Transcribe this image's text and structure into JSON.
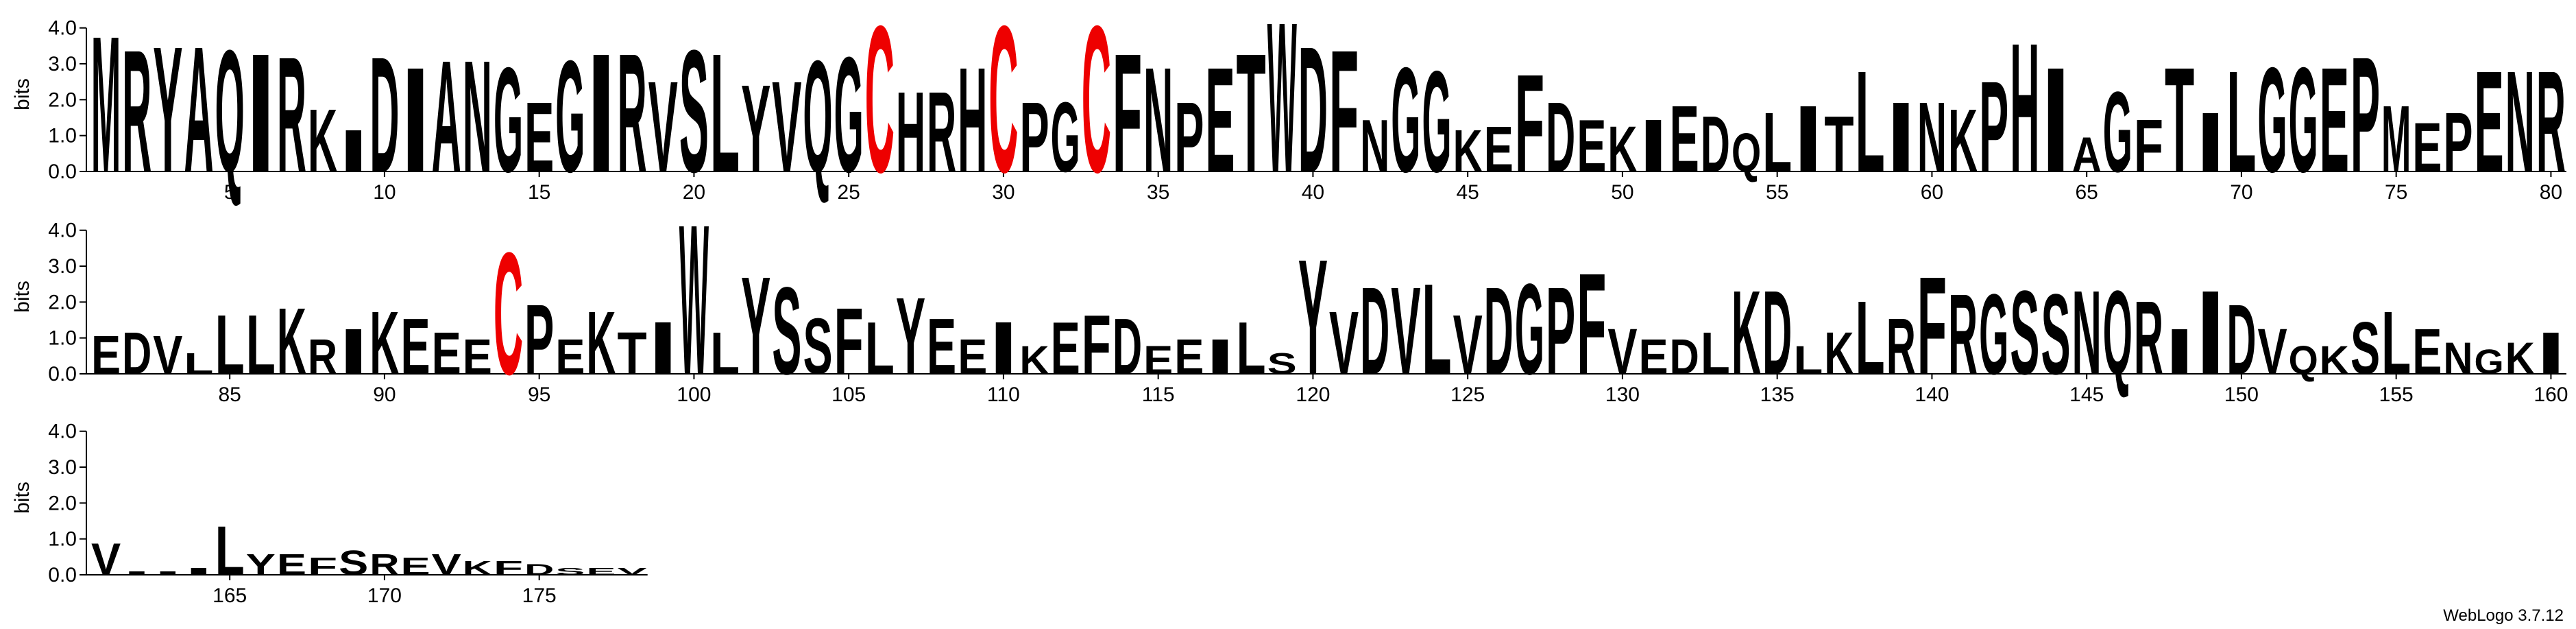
{
  "chart_data": {
    "type": "logo",
    "ylabel": "bits",
    "footer": "WebLogo 3.7.12",
    "ylim": [
      0,
      4.3
    ],
    "yticks": [
      {
        "value": 0,
        "label": "0.0"
      },
      {
        "value": 1,
        "label": "1.0"
      },
      {
        "value": 2,
        "label": "2.0"
      },
      {
        "value": 3,
        "label": "3.0"
      },
      {
        "value": 4,
        "label": "4.0"
      }
    ],
    "xticks": [
      5,
      10,
      15,
      20,
      25,
      30,
      35,
      40,
      45,
      50,
      55,
      60,
      65,
      70,
      75,
      80,
      85,
      90,
      95,
      100,
      105,
      110,
      115,
      120,
      125,
      130,
      135,
      140,
      145,
      150,
      155,
      160,
      165,
      170,
      175
    ],
    "first_position": 1,
    "color": "#000000",
    "highlight": {
      "letter": "C",
      "color": "#ee0000"
    },
    "letters": [
      "M",
      "R",
      "Y",
      "A",
      "Q",
      "I",
      "R",
      "K",
      "I",
      "D",
      "I",
      "A",
      "N",
      "G",
      "E",
      "G",
      "I",
      "R",
      "V",
      "S",
      "L",
      "Y",
      "V",
      "Q",
      "G",
      "C",
      "H",
      "R",
      "H",
      "C",
      "P",
      "G",
      "C",
      "F",
      "N",
      "P",
      "E",
      "T",
      "W",
      "D",
      "F",
      "N",
      "G",
      "G",
      "K",
      "E",
      "F",
      "D",
      "E",
      "K",
      "I",
      "E",
      "D",
      "Q",
      "L",
      "I",
      "T",
      "L",
      "I",
      "N",
      "K",
      "P",
      "H",
      "I",
      "A",
      "G",
      "F",
      "T",
      "I",
      "L",
      "G",
      "G",
      "E",
      "P",
      "M",
      "E",
      "P",
      "E",
      "N",
      "R",
      "E",
      "D",
      "V",
      "L",
      "L",
      "L",
      "K",
      "R",
      "I",
      "K",
      "E",
      "E",
      "E",
      "C",
      "P",
      "E",
      "K",
      "T",
      "I",
      "W",
      "L",
      "Y",
      "S",
      "S",
      "F",
      "L",
      "Y",
      "E",
      "E",
      "I",
      "K",
      "E",
      "F",
      "D",
      "E",
      "E",
      "I",
      "L",
      "S",
      "Y",
      "V",
      "D",
      "V",
      "L",
      "V",
      "D",
      "G",
      "P",
      "F",
      "V",
      "E",
      "D",
      "L",
      "K",
      "D",
      "L",
      "K",
      "L",
      "R",
      "F",
      "R",
      "G",
      "S",
      "S",
      "N",
      "Q",
      "R",
      "I",
      "I",
      "D",
      "V",
      "Q",
      "K",
      "S",
      "L",
      "E",
      "N",
      "G",
      "K",
      "I",
      "V",
      "I",
      "I",
      "I",
      "L",
      "Y",
      "E",
      "F",
      "S",
      "R",
      "E",
      "V",
      "K",
      "F",
      "D",
      "S",
      "E",
      "V"
    ],
    "heights": [
      3.9,
      3.5,
      3.6,
      3.6,
      3.5,
      3.4,
      3.3,
      1.8,
      1.2,
      3.3,
      3.0,
      3.2,
      3.2,
      3.0,
      2.0,
      3.2,
      3.4,
      3.4,
      2.6,
      3.5,
      3.4,
      2.5,
      2.6,
      3.2,
      3.3,
      4.2,
      2.3,
      2.3,
      3.0,
      4.2,
      2.0,
      2.0,
      4.2,
      3.4,
      3.0,
      2.0,
      3.0,
      3.4,
      4.3,
      3.6,
      3.5,
      1.5,
      3.0,
      2.9,
      1.2,
      1.3,
      2.8,
      2.0,
      1.5,
      1.3,
      1.5,
      1.9,
      1.6,
      1.1,
      1.7,
      1.9,
      1.6,
      2.9,
      2.0,
      2.0,
      1.8,
      2.6,
      3.7,
      3.0,
      1.0,
      2.3,
      1.5,
      3.0,
      1.7,
      2.9,
      3.0,
      3.0,
      3.0,
      3.3,
      1.9,
      1.4,
      1.7,
      2.9,
      2.9,
      2.9,
      1.1,
      1.2,
      1.1,
      0.6,
      1.7,
      1.7,
      1.9,
      1.0,
      1.3,
      1.8,
      1.6,
      1.2,
      1.0,
      3.5,
      2.0,
      1.0,
      1.8,
      1.2,
      1.5,
      4.3,
      1.2,
      2.8,
      2.5,
      1.6,
      1.9,
      1.5,
      2.2,
      1.6,
      1.0,
      1.5,
      0.8,
      1.5,
      1.7,
      1.6,
      0.8,
      1.0,
      1.0,
      1.5,
      0.6,
      3.3,
      1.8,
      2.5,
      2.5,
      2.6,
      1.7,
      2.5,
      2.6,
      2.5,
      2.9,
      1.3,
      1.0,
      1.0,
      1.2,
      2.4,
      2.4,
      0.8,
      1.2,
      2.1,
      1.6,
      2.8,
      2.3,
      2.3,
      2.4,
      2.3,
      2.4,
      2.4,
      2.1,
      1.3,
      2.4,
      2.0,
      1.3,
      0.8,
      0.8,
      1.5,
      1.8,
      1.3,
      0.9,
      0.7,
      0.9,
      1.2,
      0.9,
      0.1,
      0.1,
      0.2,
      1.4,
      0.6,
      0.6,
      0.5,
      0.7,
      0.6,
      0.5,
      0.6,
      0.4,
      0.4,
      0.3,
      0.2,
      0.2,
      0.2
    ]
  }
}
